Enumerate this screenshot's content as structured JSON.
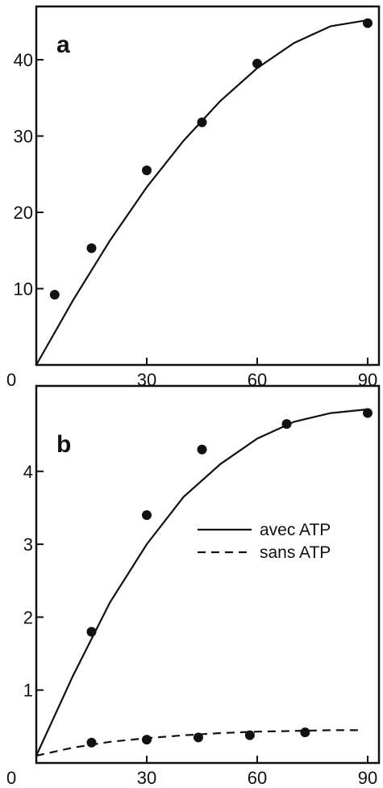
{
  "chart_data": [
    {
      "type": "scatter",
      "panel_label": "a",
      "xlim": [
        0,
        90
      ],
      "ylim": [
        0,
        46
      ],
      "x_ticks": [
        0,
        30,
        60,
        90
      ],
      "x_tick_labels": [
        "0",
        "30",
        "60",
        "90"
      ],
      "y_ticks": [
        10,
        20,
        30,
        40
      ],
      "y_tick_labels": [
        "10",
        "20",
        "30",
        "40"
      ],
      "grid": false,
      "series": [
        {
          "style": "solid",
          "points": [
            [
              5,
              9.2
            ],
            [
              15,
              15.3
            ],
            [
              30,
              25.5
            ],
            [
              45,
              31.8
            ],
            [
              60,
              39.5
            ],
            [
              90,
              44.8
            ]
          ],
          "curve": [
            [
              0,
              0
            ],
            [
              10,
              8.5
            ],
            [
              20,
              16.3
            ],
            [
              30,
              23.3
            ],
            [
              40,
              29.4
            ],
            [
              50,
              34.6
            ],
            [
              60,
              38.9
            ],
            [
              70,
              42.2
            ],
            [
              80,
              44.4
            ],
            [
              90,
              45.2
            ]
          ]
        }
      ]
    },
    {
      "type": "scatter",
      "panel_label": "b",
      "xlim": [
        0,
        90
      ],
      "ylim": [
        0,
        5
      ],
      "x_ticks": [
        0,
        30,
        60,
        90
      ],
      "x_tick_labels": [
        "0",
        "30",
        "60",
        "90"
      ],
      "y_ticks": [
        1,
        2,
        3,
        4
      ],
      "y_tick_labels": [
        "1",
        "2",
        "3",
        "4"
      ],
      "grid": false,
      "legend": {
        "position": "center-right"
      },
      "series": [
        {
          "name": "avec ATP",
          "style": "solid",
          "points": [
            [
              15,
              1.8
            ],
            [
              30,
              3.4
            ],
            [
              45,
              4.3
            ],
            [
              68,
              4.65
            ],
            [
              90,
              4.8
            ]
          ],
          "curve": [
            [
              0,
              0.1
            ],
            [
              10,
              1.2
            ],
            [
              20,
              2.2
            ],
            [
              30,
              3.0
            ],
            [
              40,
              3.65
            ],
            [
              50,
              4.1
            ],
            [
              60,
              4.45
            ],
            [
              70,
              4.68
            ],
            [
              80,
              4.8
            ],
            [
              90,
              4.85
            ]
          ]
        },
        {
          "name": "sans ATP",
          "style": "dashed",
          "points": [
            [
              15,
              0.28
            ],
            [
              30,
              0.32
            ],
            [
              44,
              0.35
            ],
            [
              58,
              0.38
            ],
            [
              73,
              0.42
            ]
          ],
          "curve": [
            [
              0,
              0.1
            ],
            [
              10,
              0.21
            ],
            [
              20,
              0.29
            ],
            [
              30,
              0.34
            ],
            [
              40,
              0.38
            ],
            [
              50,
              0.41
            ],
            [
              60,
              0.43
            ],
            [
              70,
              0.44
            ],
            [
              80,
              0.45
            ],
            [
              88,
              0.45
            ]
          ]
        }
      ]
    }
  ]
}
